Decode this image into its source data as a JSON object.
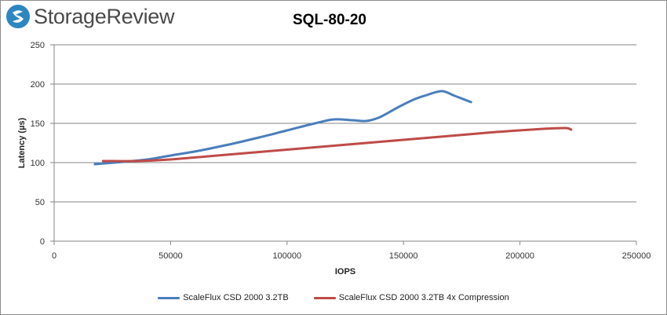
{
  "brand": {
    "name": "StorageReview",
    "accent": "#2e86c1"
  },
  "chart_data": {
    "type": "line",
    "title": "SQL-80-20",
    "xlabel": "IOPS",
    "ylabel": "Latency (µs)",
    "xlim": [
      0,
      250000
    ],
    "ylim": [
      0,
      250
    ],
    "xticks": [
      0,
      50000,
      100000,
      150000,
      200000,
      250000
    ],
    "yticks": [
      0,
      50,
      100,
      150,
      200,
      250
    ],
    "grid": "horizontal",
    "legend_position": "bottom",
    "series": [
      {
        "name": "ScaleFlux CSD 2000 3.2TB",
        "color": "#4a7ebb",
        "points": [
          [
            17500,
            98
          ],
          [
            30000,
            101
          ],
          [
            40000,
            104
          ],
          [
            50000,
            109
          ],
          [
            62000,
            115
          ],
          [
            75000,
            123
          ],
          [
            88000,
            132
          ],
          [
            100000,
            141
          ],
          [
            112000,
            150
          ],
          [
            120000,
            155
          ],
          [
            128000,
            154
          ],
          [
            134000,
            153
          ],
          [
            140000,
            158
          ],
          [
            148000,
            171
          ],
          [
            155000,
            181
          ],
          [
            160000,
            186
          ],
          [
            166500,
            191
          ],
          [
            172000,
            185
          ],
          [
            179000,
            177
          ]
        ]
      },
      {
        "name": "ScaleFlux CSD 2000 3.2TB 4x Compression",
        "color": "#be4b48",
        "points": [
          [
            21000,
            102
          ],
          [
            35000,
            102
          ],
          [
            50000,
            104
          ],
          [
            70000,
            109
          ],
          [
            90000,
            114
          ],
          [
            110000,
            119
          ],
          [
            130000,
            124
          ],
          [
            150000,
            129
          ],
          [
            170000,
            134
          ],
          [
            190000,
            139
          ],
          [
            210000,
            143
          ],
          [
            219500,
            144
          ],
          [
            222000,
            142
          ]
        ]
      }
    ]
  }
}
